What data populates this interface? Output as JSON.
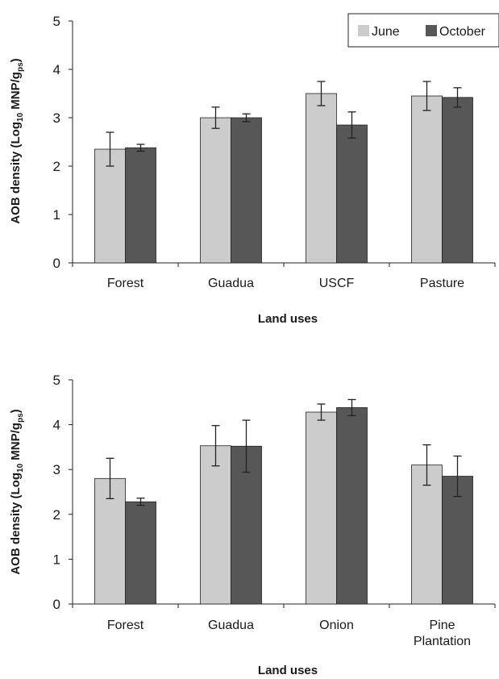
{
  "colors": {
    "june": "#cccccc",
    "october": "#575757",
    "axis": "#222222"
  },
  "legend": {
    "june": "June",
    "october": "October"
  },
  "chart_data": [
    {
      "type": "bar",
      "categories": [
        "Forest",
        "Guadua",
        "USCF",
        "Pasture"
      ],
      "series": [
        {
          "name": "June",
          "values": [
            2.35,
            3.0,
            3.5,
            3.45
          ],
          "errors": [
            0.35,
            0.22,
            0.25,
            0.3
          ]
        },
        {
          "name": "October",
          "values": [
            2.38,
            3.0,
            2.85,
            3.42
          ],
          "errors": [
            0.07,
            0.08,
            0.27,
            0.2
          ]
        }
      ],
      "xlabel": "Land uses",
      "ylabel": "AOB density (Log10 MNP/gps)",
      "ylim": [
        0,
        5
      ],
      "yticks": [
        0,
        1,
        2,
        3,
        4,
        5
      ],
      "grid": false,
      "legend_position": "top-right"
    },
    {
      "type": "bar",
      "categories": [
        "Forest",
        "Guadua",
        "Onion",
        "Pine Plantation"
      ],
      "series": [
        {
          "name": "June",
          "values": [
            2.8,
            3.53,
            4.28,
            3.1
          ],
          "errors": [
            0.45,
            0.45,
            0.18,
            0.45
          ]
        },
        {
          "name": "October",
          "values": [
            2.28,
            3.52,
            4.38,
            2.85
          ],
          "errors": [
            0.08,
            0.58,
            0.18,
            0.45
          ]
        }
      ],
      "xlabel": "Land uses",
      "ylabel": "AOB density (Log10 MNP/gps)",
      "ylim": [
        0,
        5
      ],
      "yticks": [
        0,
        1,
        2,
        3,
        4,
        5
      ],
      "grid": false
    }
  ]
}
